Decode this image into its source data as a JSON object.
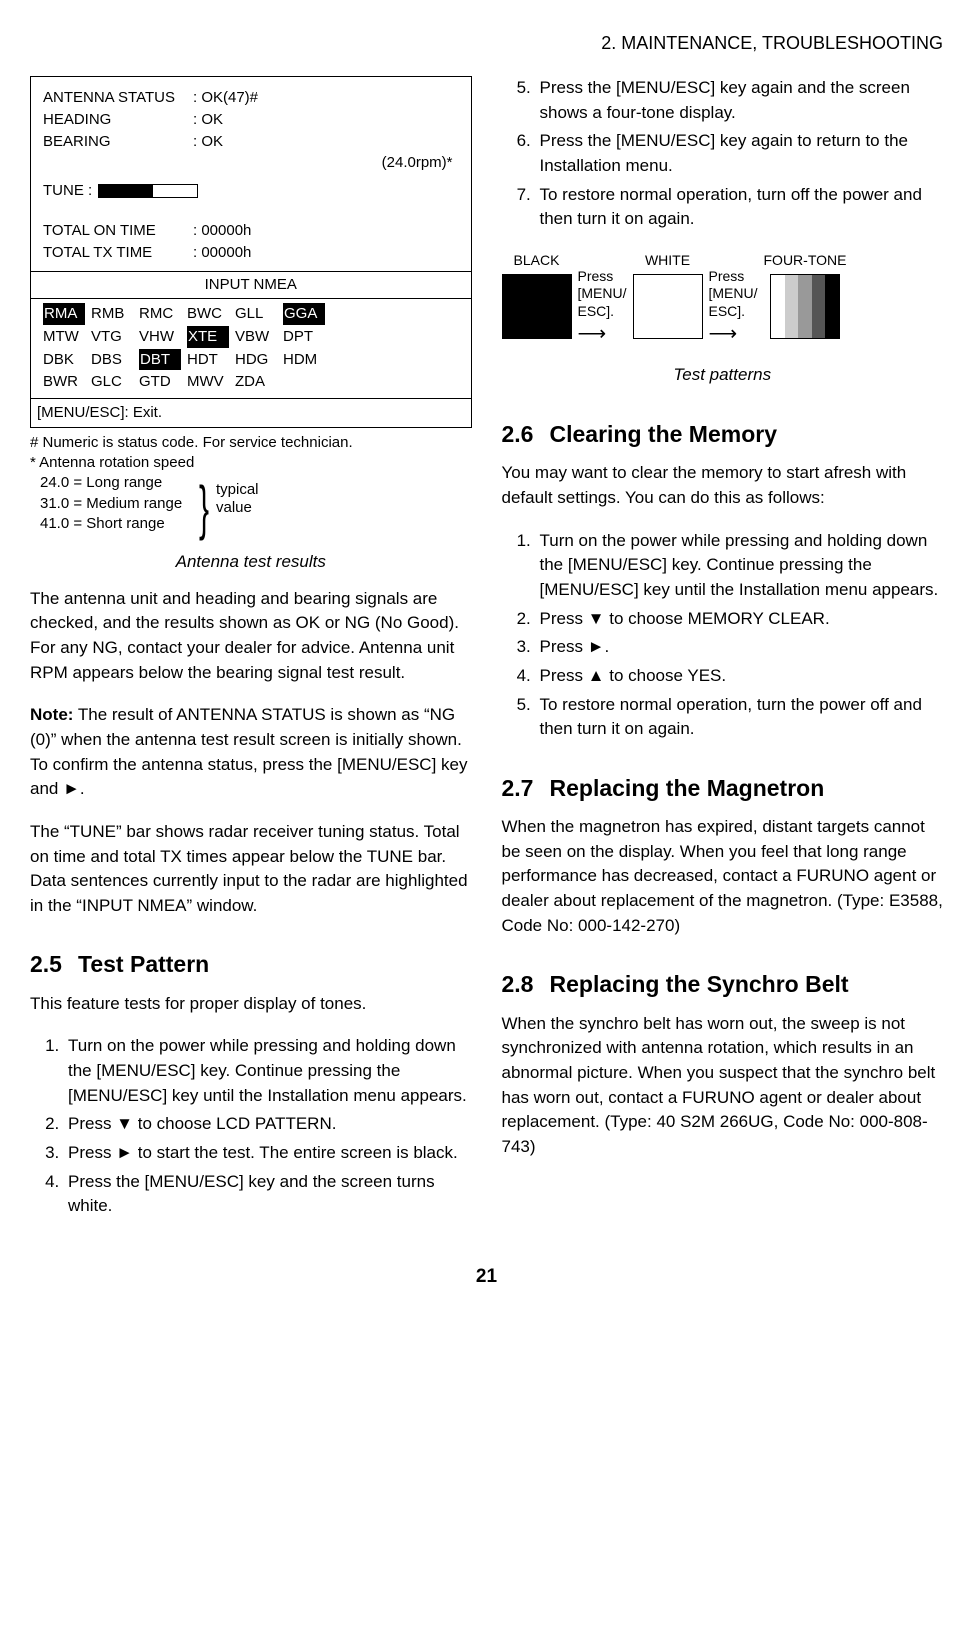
{
  "header": "2. MAINTENANCE, TROUBLESHOOTING",
  "pageNumber": "21",
  "diag": {
    "rows": [
      {
        "label": "ANTENNA STATUS",
        "value": ": OK(47)#"
      },
      {
        "label": "HEADING",
        "value": ": OK"
      },
      {
        "label": "BEARING",
        "value": ": OK"
      }
    ],
    "rpm": "(24.0rpm)*",
    "tuneLabel": "TUNE   :",
    "tuneFillPct": 55,
    "times": [
      {
        "label": "TOTAL ON TIME",
        "value": ": 00000h"
      },
      {
        "label": "TOTAL TX TIME",
        "value": ": 00000h"
      }
    ],
    "nmeaTitle": "INPUT NMEA",
    "nmea": [
      [
        {
          "t": "RMA",
          "h": true
        },
        {
          "t": "RMB"
        },
        {
          "t": "RMC"
        },
        {
          "t": "BWC"
        },
        {
          "t": "GLL"
        },
        {
          "t": "GGA",
          "h": true
        }
      ],
      [
        {
          "t": "MTW"
        },
        {
          "t": "VTG"
        },
        {
          "t": "VHW"
        },
        {
          "t": "XTE",
          "h": true
        },
        {
          "t": "VBW"
        },
        {
          "t": "DPT"
        }
      ],
      [
        {
          "t": "DBK"
        },
        {
          "t": "DBS"
        },
        {
          "t": "DBT",
          "h": true
        },
        {
          "t": "HDT"
        },
        {
          "t": "HDG"
        },
        {
          "t": "HDM"
        }
      ],
      [
        {
          "t": "BWR"
        },
        {
          "t": "GLC"
        },
        {
          "t": "GTD"
        },
        {
          "t": "MWV"
        },
        {
          "t": "ZDA"
        }
      ]
    ],
    "menuEsc": "[MENU/ESC]: Exit."
  },
  "footnote": {
    "l1": "# Numeric is status code.  For service technician.",
    "l2": "* Antenna rotation speed",
    "r1": "24.0 = Long range",
    "r2": "31.0 = Medium range",
    "r3": "41.0 = Short range",
    "brace": "}",
    "typ1": "typical",
    "typ2": "value"
  },
  "figCaption1": "Antenna test results",
  "paraA": "The antenna unit and heading and bearing signals are checked, and the results shown as OK or NG (No Good). For any NG, contact your dealer for advice. Antenna unit RPM appears below the bearing signal test result.",
  "paraBLabel": "Note:",
  "paraB": " The result of ANTENNA STATUS is shown as “NG (0)” when the antenna test result screen is initially shown. To confirm the antenna status, press the [MENU/ESC] key and ►.",
  "paraC": "The “TUNE” bar shows radar receiver tuning status. Total on time and total TX times appear below the TUNE bar. Data sentences currently input to the radar are highlighted in the “INPUT NMEA” window.",
  "s25": {
    "num": "2.5",
    "title": "Test Pattern",
    "intro": "This feature tests for proper display of tones.",
    "steps": [
      "Turn on the power while pressing and holding down the [MENU/ESC] key. Continue pressing the [MENU/ESC] key until the Installation menu appears.",
      "Press ▼ to choose LCD PATTERN.",
      "Press ► to start the test. The entire screen is black.",
      "Press the [MENU/ESC] key and the screen turns white.",
      "Press the [MENU/ESC] key again and the screen shows a four-tone display.",
      "Press the [MENU/ESC] key again to return to the Installation menu.",
      "To restore normal operation, turn off the power and then turn it on again."
    ]
  },
  "tp": {
    "black": "BLACK",
    "white": "WHITE",
    "four": "FOUR-TONE",
    "press1": "Press",
    "press2": "[MENU/",
    "press3": "ESC].",
    "caption": "Test patterns",
    "tones": [
      "#ffffff",
      "#cccccc",
      "#999999",
      "#555555",
      "#000000"
    ]
  },
  "s26": {
    "num": "2.6",
    "title": "Clearing the Memory",
    "intro": "You may want to clear the memory to start afresh with default settings. You can do this as follows:",
    "steps": [
      "Turn on the power while pressing and holding down the [MENU/ESC] key. Continue pressing the [MENU/ESC] key until the Installation menu appears.",
      "Press ▼ to choose MEMORY CLEAR.",
      "Press ►.",
      "Press ▲ to choose YES.",
      "To restore normal operation, turn the power off and then turn it on again."
    ]
  },
  "s27": {
    "num": "2.7",
    "title": "Replacing the Magnetron",
    "body": "When the magnetron has expired, distant targets cannot be seen on the display. When you feel that long range performance has decreased, contact a FURUNO agent or dealer about replacement of the magnetron. (Type: E3588, Code No: 000-142-270)"
  },
  "s28": {
    "num": "2.8",
    "title": "Replacing the Synchro Belt",
    "body": "When the synchro belt has worn out, the sweep is not synchronized with antenna rotation, which results in an abnormal picture. When you suspect that the synchro belt has worn out, contact a FURUNO agent or dealer about replacement. (Type: 40 S2M 266UG, Code No: 000-808-743)"
  }
}
